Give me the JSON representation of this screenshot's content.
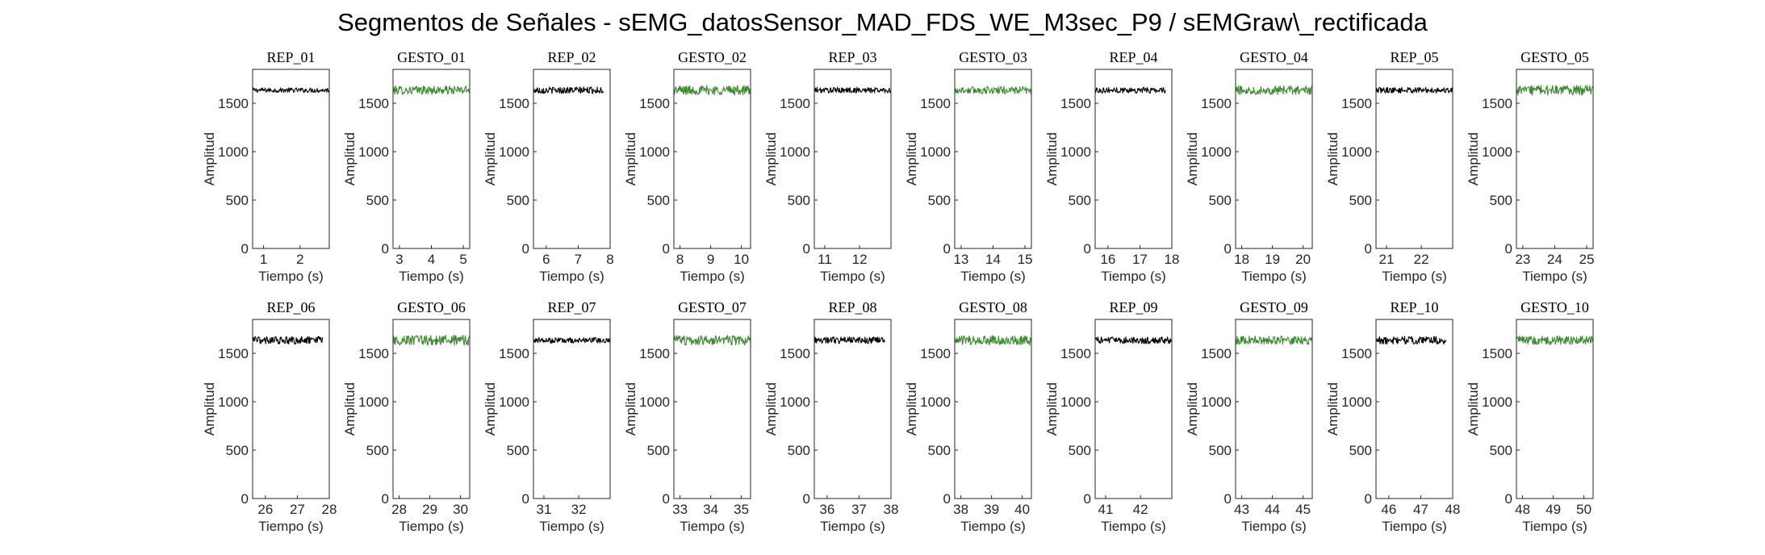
{
  "figure": {
    "title": "Segmentos de Señales - sEMG_datosSensor_MAD_FDS_WE_M3sec_P9 / sEMGraw\\_rectificada"
  },
  "colors": {
    "rep": "#000000",
    "gesto": "#3a8a2e",
    "axis": "#262626"
  },
  "chart_data": [
    {
      "type": "line",
      "title": "REP_01",
      "xlabel": "Tiempo (s)",
      "ylabel": "Amplitud",
      "xlim": [
        0.7,
        2.8
      ],
      "ylim": [
        0,
        1850
      ],
      "xticks": [
        1,
        2
      ],
      "yticks": [
        0,
        500,
        1000,
        1500
      ],
      "grid": false,
      "series": [
        {
          "kind": "rep",
          "x_range": [
            0.7,
            2.8
          ],
          "level": 1635,
          "noise": 25
        }
      ]
    },
    {
      "type": "line",
      "title": "GESTO_01",
      "xlabel": "Tiempo (s)",
      "ylabel": "Amplitud",
      "xlim": [
        2.8,
        5.2
      ],
      "ylim": [
        0,
        1850
      ],
      "xticks": [
        3,
        4,
        5
      ],
      "yticks": [
        0,
        500,
        1000,
        1500
      ],
      "grid": false,
      "series": [
        {
          "kind": "gesto",
          "x_range": [
            2.8,
            5.2
          ],
          "level": 1635,
          "noise": 45
        }
      ]
    },
    {
      "type": "line",
      "title": "REP_02",
      "xlabel": "Tiempo (s)",
      "ylabel": "Amplitud",
      "xlim": [
        5.6,
        8
      ],
      "ylim": [
        0,
        1850
      ],
      "xticks": [
        6,
        7,
        8
      ],
      "yticks": [
        0,
        500,
        1000,
        1500
      ],
      "grid": false,
      "series": [
        {
          "kind": "rep",
          "x_range": [
            5.6,
            7.8
          ],
          "level": 1635,
          "noise": 35
        }
      ]
    },
    {
      "type": "line",
      "title": "GESTO_02",
      "xlabel": "Tiempo (s)",
      "ylabel": "Amplitud",
      "xlim": [
        7.8,
        10.3
      ],
      "ylim": [
        0,
        1850
      ],
      "xticks": [
        8,
        9,
        10
      ],
      "yticks": [
        0,
        500,
        1000,
        1500
      ],
      "grid": false,
      "series": [
        {
          "kind": "gesto",
          "x_range": [
            7.8,
            10.3
          ],
          "level": 1635,
          "noise": 50
        }
      ]
    },
    {
      "type": "line",
      "title": "REP_03",
      "xlabel": "Tiempo (s)",
      "ylabel": "Amplitud",
      "xlim": [
        10.7,
        12.9
      ],
      "ylim": [
        0,
        1850
      ],
      "xticks": [
        11,
        12
      ],
      "yticks": [
        0,
        500,
        1000,
        1500
      ],
      "grid": false,
      "series": [
        {
          "kind": "rep",
          "x_range": [
            10.7,
            12.9
          ],
          "level": 1635,
          "noise": 30
        }
      ]
    },
    {
      "type": "line",
      "title": "GESTO_03",
      "xlabel": "Tiempo (s)",
      "ylabel": "Amplitud",
      "xlim": [
        12.8,
        15.2
      ],
      "ylim": [
        0,
        1850
      ],
      "xticks": [
        13,
        14,
        15
      ],
      "yticks": [
        0,
        500,
        1000,
        1500
      ],
      "grid": false,
      "series": [
        {
          "kind": "gesto",
          "x_range": [
            12.8,
            15.2
          ],
          "level": 1635,
          "noise": 40
        }
      ]
    },
    {
      "type": "line",
      "title": "REP_04",
      "xlabel": "Tiempo (s)",
      "ylabel": "Amplitud",
      "xlim": [
        15.6,
        18
      ],
      "ylim": [
        0,
        1850
      ],
      "xticks": [
        16,
        17,
        18
      ],
      "yticks": [
        0,
        500,
        1000,
        1500
      ],
      "grid": false,
      "series": [
        {
          "kind": "rep",
          "x_range": [
            15.6,
            17.8
          ],
          "level": 1635,
          "noise": 30
        }
      ]
    },
    {
      "type": "line",
      "title": "GESTO_04",
      "xlabel": "Tiempo (s)",
      "ylabel": "Amplitud",
      "xlim": [
        17.8,
        20.3
      ],
      "ylim": [
        0,
        1850
      ],
      "xticks": [
        18,
        19,
        20
      ],
      "yticks": [
        0,
        500,
        1000,
        1500
      ],
      "grid": false,
      "series": [
        {
          "kind": "gesto",
          "x_range": [
            17.8,
            20.3
          ],
          "level": 1635,
          "noise": 45
        }
      ]
    },
    {
      "type": "line",
      "title": "REP_05",
      "xlabel": "Tiempo (s)",
      "ylabel": "Amplitud",
      "xlim": [
        20.7,
        22.9
      ],
      "ylim": [
        0,
        1850
      ],
      "xticks": [
        21,
        22
      ],
      "yticks": [
        0,
        500,
        1000,
        1500
      ],
      "grid": false,
      "series": [
        {
          "kind": "rep",
          "x_range": [
            20.7,
            22.9
          ],
          "level": 1635,
          "noise": 30
        }
      ]
    },
    {
      "type": "line",
      "title": "GESTO_05",
      "xlabel": "Tiempo (s)",
      "ylabel": "Amplitud",
      "xlim": [
        22.8,
        25.2
      ],
      "ylim": [
        0,
        1850
      ],
      "xticks": [
        23,
        24,
        25
      ],
      "yticks": [
        0,
        500,
        1000,
        1500
      ],
      "grid": false,
      "series": [
        {
          "kind": "gesto",
          "x_range": [
            22.8,
            25.2
          ],
          "level": 1635,
          "noise": 50
        }
      ]
    },
    {
      "type": "line",
      "title": "REP_06",
      "xlabel": "Tiempo (s)",
      "ylabel": "Amplitud",
      "xlim": [
        25.6,
        28
      ],
      "ylim": [
        0,
        1850
      ],
      "xticks": [
        26,
        27,
        28
      ],
      "yticks": [
        0,
        500,
        1000,
        1500
      ],
      "grid": false,
      "series": [
        {
          "kind": "rep",
          "x_range": [
            25.6,
            27.8
          ],
          "level": 1635,
          "noise": 40
        }
      ]
    },
    {
      "type": "line",
      "title": "GESTO_06",
      "xlabel": "Tiempo (s)",
      "ylabel": "Amplitud",
      "xlim": [
        27.8,
        30.3
      ],
      "ylim": [
        0,
        1850
      ],
      "xticks": [
        28,
        29,
        30
      ],
      "yticks": [
        0,
        500,
        1000,
        1500
      ],
      "grid": false,
      "series": [
        {
          "kind": "gesto",
          "x_range": [
            27.8,
            30.3
          ],
          "level": 1635,
          "noise": 55
        }
      ]
    },
    {
      "type": "line",
      "title": "REP_07",
      "xlabel": "Tiempo (s)",
      "ylabel": "Amplitud",
      "xlim": [
        30.7,
        32.9
      ],
      "ylim": [
        0,
        1850
      ],
      "xticks": [
        31,
        32
      ],
      "yticks": [
        0,
        500,
        1000,
        1500
      ],
      "grid": false,
      "series": [
        {
          "kind": "rep",
          "x_range": [
            30.7,
            32.9
          ],
          "level": 1635,
          "noise": 30
        }
      ]
    },
    {
      "type": "line",
      "title": "GESTO_07",
      "xlabel": "Tiempo (s)",
      "ylabel": "Amplitud",
      "xlim": [
        32.8,
        35.3
      ],
      "ylim": [
        0,
        1850
      ],
      "xticks": [
        33,
        34,
        35
      ],
      "yticks": [
        0,
        500,
        1000,
        1500
      ],
      "grid": false,
      "series": [
        {
          "kind": "gesto",
          "x_range": [
            32.8,
            35.3
          ],
          "level": 1635,
          "noise": 50
        }
      ]
    },
    {
      "type": "line",
      "title": "REP_08",
      "xlabel": "Tiempo (s)",
      "ylabel": "Amplitud",
      "xlim": [
        35.6,
        38
      ],
      "ylim": [
        0,
        1850
      ],
      "xticks": [
        36,
        37,
        38
      ],
      "yticks": [
        0,
        500,
        1000,
        1500
      ],
      "grid": false,
      "series": [
        {
          "kind": "rep",
          "x_range": [
            35.6,
            37.8
          ],
          "level": 1635,
          "noise": 35
        }
      ]
    },
    {
      "type": "line",
      "title": "GESTO_08",
      "xlabel": "Tiempo (s)",
      "ylabel": "Amplitud",
      "xlim": [
        37.8,
        40.3
      ],
      "ylim": [
        0,
        1850
      ],
      "xticks": [
        38,
        39,
        40
      ],
      "yticks": [
        0,
        500,
        1000,
        1500
      ],
      "grid": false,
      "series": [
        {
          "kind": "gesto",
          "x_range": [
            37.8,
            40.3
          ],
          "level": 1635,
          "noise": 50
        }
      ]
    },
    {
      "type": "line",
      "title": "REP_09",
      "xlabel": "Tiempo (s)",
      "ylabel": "Amplitud",
      "xlim": [
        40.7,
        42.9
      ],
      "ylim": [
        0,
        1850
      ],
      "xticks": [
        41,
        42
      ],
      "yticks": [
        0,
        500,
        1000,
        1500
      ],
      "grid": false,
      "series": [
        {
          "kind": "rep",
          "x_range": [
            40.7,
            42.9
          ],
          "level": 1635,
          "noise": 35
        }
      ]
    },
    {
      "type": "line",
      "title": "GESTO_09",
      "xlabel": "Tiempo (s)",
      "ylabel": "Amplitud",
      "xlim": [
        42.8,
        45.3
      ],
      "ylim": [
        0,
        1850
      ],
      "xticks": [
        43,
        44,
        45
      ],
      "yticks": [
        0,
        500,
        1000,
        1500
      ],
      "grid": false,
      "series": [
        {
          "kind": "gesto",
          "x_range": [
            42.8,
            45.3
          ],
          "level": 1635,
          "noise": 45
        }
      ]
    },
    {
      "type": "line",
      "title": "REP_10",
      "xlabel": "Tiempo (s)",
      "ylabel": "Amplitud",
      "xlim": [
        45.6,
        48
      ],
      "ylim": [
        0,
        1850
      ],
      "xticks": [
        46,
        47,
        48
      ],
      "yticks": [
        0,
        500,
        1000,
        1500
      ],
      "grid": false,
      "series": [
        {
          "kind": "rep",
          "x_range": [
            45.6,
            47.8
          ],
          "level": 1635,
          "noise": 40
        }
      ]
    },
    {
      "type": "line",
      "title": "GESTO_10",
      "xlabel": "Tiempo (s)",
      "ylabel": "Amplitud",
      "xlim": [
        47.8,
        50.3
      ],
      "ylim": [
        0,
        1850
      ],
      "xticks": [
        48,
        49,
        50
      ],
      "yticks": [
        0,
        500,
        1000,
        1500
      ],
      "grid": false,
      "series": [
        {
          "kind": "gesto",
          "x_range": [
            47.8,
            50.3
          ],
          "level": 1635,
          "noise": 45
        }
      ]
    }
  ]
}
